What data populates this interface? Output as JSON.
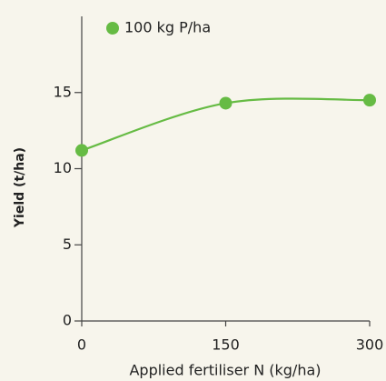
{
  "chart_data": {
    "type": "line",
    "x_label": "Applied fertiliser N (kg/ha)",
    "y_label": "Yield (t/ha)",
    "x": [
      0,
      150,
      300
    ],
    "series": [
      {
        "name": "100 kg P/ha",
        "color": "#66bb44",
        "values": [
          11.2,
          14.3,
          14.5
        ]
      }
    ],
    "xlim": [
      0,
      300
    ],
    "xticks": [
      0,
      150,
      300
    ],
    "ylim": [
      0,
      20
    ],
    "yticks": [
      0,
      5,
      10,
      15
    ],
    "grid": false,
    "legend": "top-left"
  }
}
